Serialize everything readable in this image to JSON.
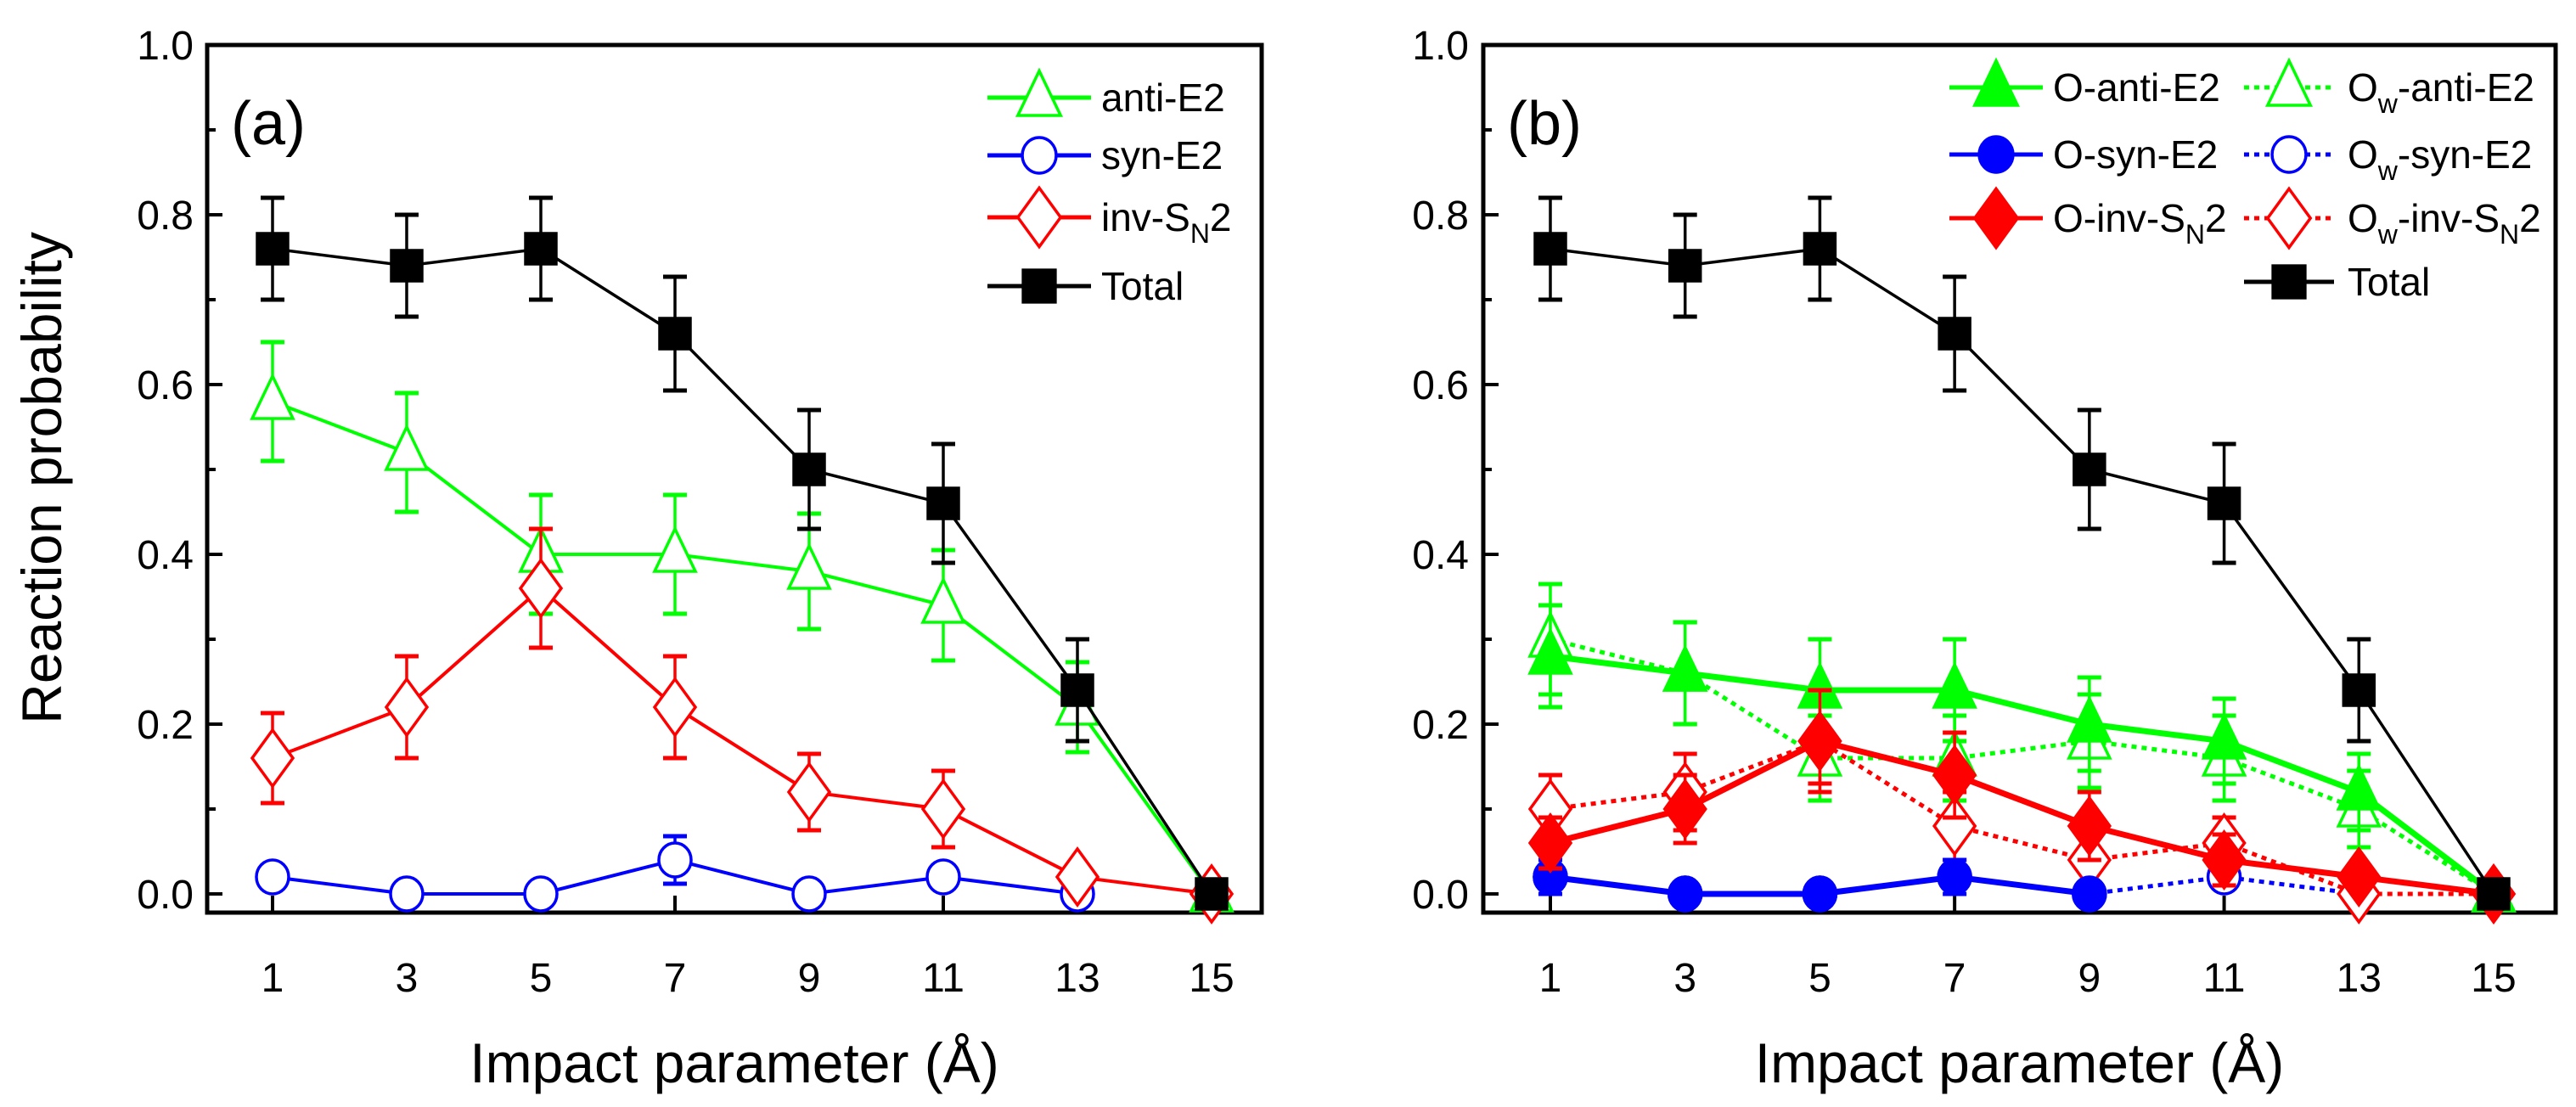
{
  "chart_data": [
    {
      "type": "line",
      "panel_label": "(a)",
      "xlabel": "Impact parameter (Å)",
      "ylabel": "Reaction probability",
      "x": [
        1,
        3,
        5,
        7,
        9,
        11,
        13,
        15
      ],
      "xticks": [
        "1",
        "3",
        "5",
        "7",
        "9",
        "11",
        "13",
        "15"
      ],
      "ylim": [
        0,
        1
      ],
      "yticks": [
        "0.0",
        "0.2",
        "0.4",
        "0.6",
        "0.8",
        "1.0"
      ],
      "grid": false,
      "legend_position": "top-right",
      "series": [
        {
          "name": "anti-E2",
          "label": [
            {
              "t": "anti-E2"
            }
          ],
          "color": "#00ff00",
          "marker": "triangle",
          "filled": false,
          "dash": "solid",
          "values": [
            0.58,
            0.52,
            0.4,
            0.4,
            0.38,
            0.34,
            0.22,
            0.0
          ],
          "errors": [
            0.07,
            0.07,
            0.07,
            0.07,
            0.068,
            0.065,
            0.053,
            0
          ]
        },
        {
          "name": "syn-E2",
          "label": [
            {
              "t": "syn-E2"
            }
          ],
          "color": "#0000ff",
          "marker": "circle",
          "filled": false,
          "dash": "solid",
          "values": [
            0.02,
            0.0,
            0.0,
            0.04,
            0.0,
            0.02,
            0.0,
            null
          ],
          "errors": [
            0.01,
            0,
            0,
            0.028,
            0,
            0.01,
            0,
            0
          ]
        },
        {
          "name": "inv-SN2",
          "label": [
            {
              "t": "inv-S"
            },
            {
              "t": "N",
              "sub": true
            },
            {
              "t": "2"
            }
          ],
          "color": "#ff0000",
          "marker": "diamond",
          "filled": false,
          "dash": "solid",
          "values": [
            0.16,
            0.22,
            0.36,
            0.22,
            0.12,
            0.1,
            0.02,
            0.0
          ],
          "errors": [
            0.053,
            0.06,
            0.07,
            0.06,
            0.045,
            0.045,
            0.01,
            0
          ]
        },
        {
          "name": "Total",
          "label": [
            {
              "t": "Total"
            }
          ],
          "color": "#000000",
          "marker": "square",
          "filled": true,
          "dash": "solid",
          "values": [
            0.76,
            0.74,
            0.76,
            0.66,
            0.5,
            0.46,
            0.24,
            0.0
          ],
          "errors": [
            0.06,
            0.06,
            0.06,
            0.067,
            0.07,
            0.07,
            0.06,
            0
          ]
        }
      ]
    },
    {
      "type": "line",
      "panel_label": "(b)",
      "xlabel": "Impact parameter (Å)",
      "ylabel": "",
      "x": [
        1,
        3,
        5,
        7,
        9,
        11,
        13,
        15
      ],
      "xticks": [
        "1",
        "3",
        "5",
        "7",
        "9",
        "11",
        "13",
        "15"
      ],
      "ylim": [
        0,
        1
      ],
      "yticks": [
        "0.0",
        "0.2",
        "0.4",
        "0.6",
        "0.8",
        "1.0"
      ],
      "grid": false,
      "legend_position": "top-right",
      "series": [
        {
          "name": "Ow-anti-E2",
          "label": [
            {
              "t": "O"
            },
            {
              "t": "w",
              "sub": true
            },
            {
              "t": "-anti-E2"
            }
          ],
          "color": "#00ff00",
          "marker": "triangle",
          "filled": false,
          "dash": "dotted",
          "values": [
            0.3,
            0.26,
            0.16,
            0.16,
            0.18,
            0.16,
            0.1,
            0.0
          ],
          "errors": [
            0.065,
            0.06,
            0.05,
            0.05,
            0.055,
            0.05,
            0.045,
            0
          ]
        },
        {
          "name": "Ow-syn-E2",
          "label": [
            {
              "t": "O"
            },
            {
              "t": "w",
              "sub": true
            },
            {
              "t": "-syn-E2"
            }
          ],
          "color": "#0000ff",
          "marker": "circle",
          "filled": false,
          "dash": "dotted",
          "values": [
            0.02,
            0.0,
            0.0,
            0.02,
            0.0,
            0.02,
            0.0,
            null
          ],
          "errors": [
            0.01,
            0,
            0,
            0.01,
            0,
            0.01,
            0,
            0
          ]
        },
        {
          "name": "Ow-inv-SN2",
          "label": [
            {
              "t": "O"
            },
            {
              "t": "w",
              "sub": true
            },
            {
              "t": "-inv-S"
            },
            {
              "t": "N",
              "sub": true
            },
            {
              "t": "2"
            }
          ],
          "color": "#ff0000",
          "marker": "diamond",
          "filled": false,
          "dash": "dotted",
          "values": [
            0.1,
            0.12,
            0.18,
            0.08,
            0.04,
            0.06,
            0.0,
            0.0
          ],
          "errors": [
            0.04,
            0.045,
            0.05,
            0.04,
            0.03,
            0.03,
            0.005,
            0
          ]
        },
        {
          "name": "O-anti-E2",
          "label": [
            {
              "t": "O-anti-E2"
            }
          ],
          "color": "#00ff00",
          "marker": "triangle",
          "filled": true,
          "dash": "solid",
          "values": [
            0.28,
            0.26,
            0.24,
            0.24,
            0.2,
            0.18,
            0.12,
            0.0
          ],
          "errors": [
            0.06,
            0.06,
            0.06,
            0.06,
            0.055,
            0.05,
            0.045,
            0
          ]
        },
        {
          "name": "O-syn-E2",
          "label": [
            {
              "t": "O-syn-E2"
            }
          ],
          "color": "#0000ff",
          "marker": "circle",
          "filled": true,
          "dash": "solid",
          "values": [
            0.02,
            0.0,
            0.0,
            0.02,
            0.0,
            null,
            null,
            null
          ],
          "errors": [
            0.02,
            0,
            0,
            0.02,
            0,
            0,
            0,
            0
          ]
        },
        {
          "name": "O-inv-SN2",
          "label": [
            {
              "t": "O-inv-S"
            },
            {
              "t": "N",
              "sub": true
            },
            {
              "t": "2"
            }
          ],
          "color": "#ff0000",
          "marker": "diamond",
          "filled": true,
          "dash": "solid",
          "values": [
            0.06,
            0.1,
            0.18,
            0.14,
            0.08,
            0.04,
            0.02,
            0.0
          ],
          "errors": [
            0.03,
            0.04,
            0.06,
            0.05,
            0.04,
            0.03,
            0.01,
            0
          ]
        },
        {
          "name": "Total",
          "label": [
            {
              "t": "Total"
            }
          ],
          "color": "#000000",
          "marker": "square",
          "filled": true,
          "dash": "solid",
          "values": [
            0.76,
            0.74,
            0.76,
            0.66,
            0.5,
            0.46,
            0.24,
            0.0
          ],
          "errors": [
            0.06,
            0.06,
            0.06,
            0.067,
            0.07,
            0.07,
            0.06,
            0
          ]
        }
      ]
    }
  ]
}
